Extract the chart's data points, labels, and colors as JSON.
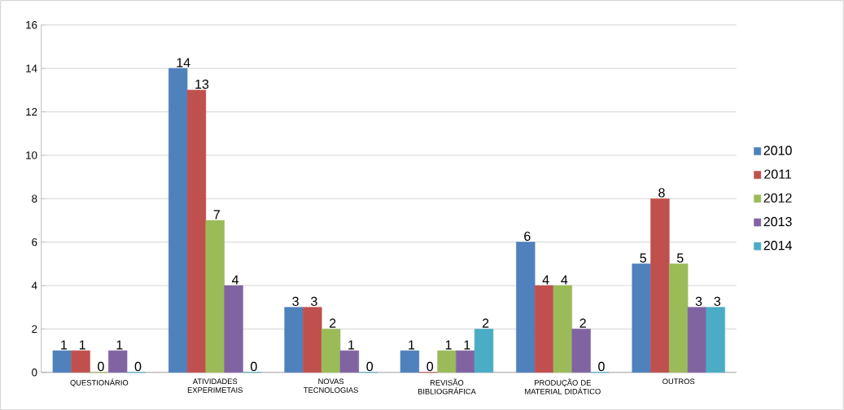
{
  "chart_data": {
    "type": "bar",
    "categories": [
      "QUESTIONÁRIO",
      "ATIVIDADES EXPERIMETAIS",
      "NOVAS TECNOLOGIAS",
      "REVISÃO BIBLIOGRÁFICA",
      "PRODUÇÃO DE MATERIAL DIDÁTICO",
      "OUTROS"
    ],
    "series": [
      {
        "name": "2010",
        "color": "#4f81bd",
        "values": [
          1,
          14,
          3,
          1,
          6,
          5
        ]
      },
      {
        "name": "2011",
        "color": "#c0504d",
        "values": [
          1,
          13,
          3,
          0,
          4,
          8
        ]
      },
      {
        "name": "2012",
        "color": "#9bbb59",
        "values": [
          0,
          7,
          2,
          1,
          4,
          5
        ]
      },
      {
        "name": "2013",
        "color": "#8064a2",
        "values": [
          1,
          4,
          1,
          1,
          2,
          3
        ]
      },
      {
        "name": "2014",
        "color": "#4bacc6",
        "values": [
          0,
          0,
          0,
          2,
          0,
          3
        ]
      }
    ],
    "ylim": [
      0,
      16
    ],
    "yticks": [
      0,
      2,
      4,
      6,
      8,
      10,
      12,
      14,
      16
    ],
    "grid": "y",
    "legend": "right",
    "data_labels": true
  }
}
